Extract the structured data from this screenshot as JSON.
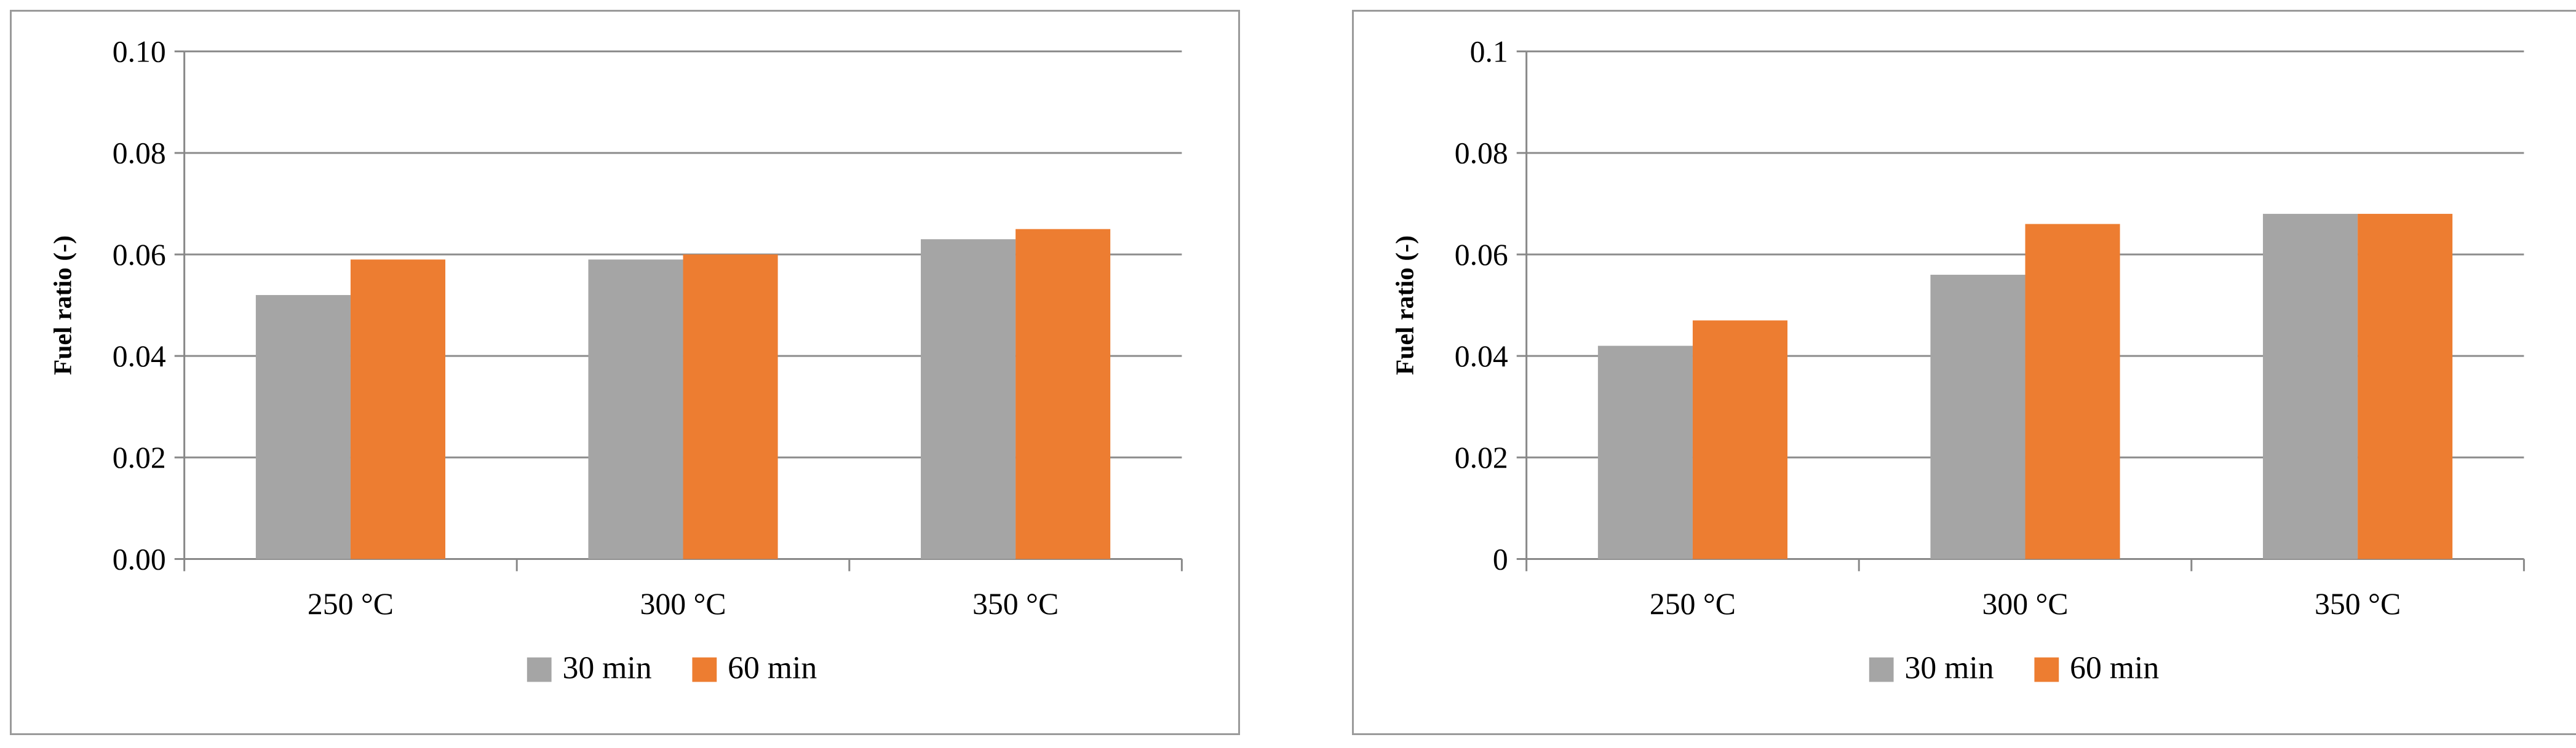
{
  "chart_data": [
    {
      "type": "bar",
      "categories": [
        "250 °C",
        "300 °C",
        "350 °C"
      ],
      "series": [
        {
          "name": "30 min",
          "color": "#a5a5a5",
          "values": [
            0.052,
            0.059,
            0.063
          ]
        },
        {
          "name": "60 min",
          "color": "#ed7d31",
          "values": [
            0.059,
            0.06,
            0.065
          ]
        }
      ],
      "ylabel": "Fuel ratio (-)",
      "ylim": [
        0,
        0.1
      ],
      "yticks": [
        0,
        0.02,
        0.04,
        0.06,
        0.08,
        0.1
      ],
      "ytick_labels": [
        "0.00",
        "0.02",
        "0.04",
        "0.06",
        "0.08",
        "0.10"
      ],
      "grid": true,
      "legend": "bottom"
    },
    {
      "type": "bar",
      "categories": [
        "250 °C",
        "300 °C",
        "350 °C"
      ],
      "series": [
        {
          "name": "30 min",
          "color": "#a5a5a5",
          "values": [
            0.042,
            0.056,
            0.068
          ]
        },
        {
          "name": "60 min",
          "color": "#ed7d31",
          "values": [
            0.047,
            0.066,
            0.068
          ]
        }
      ],
      "ylabel": "Fuel ratio (-)",
      "ylim": [
        0,
        0.1
      ],
      "yticks": [
        0,
        0.02,
        0.04,
        0.06,
        0.08,
        0.1
      ],
      "ytick_labels": [
        "0",
        "0.02",
        "0.04",
        "0.06",
        "0.08",
        "0.1"
      ],
      "grid": true,
      "legend": "bottom"
    }
  ]
}
